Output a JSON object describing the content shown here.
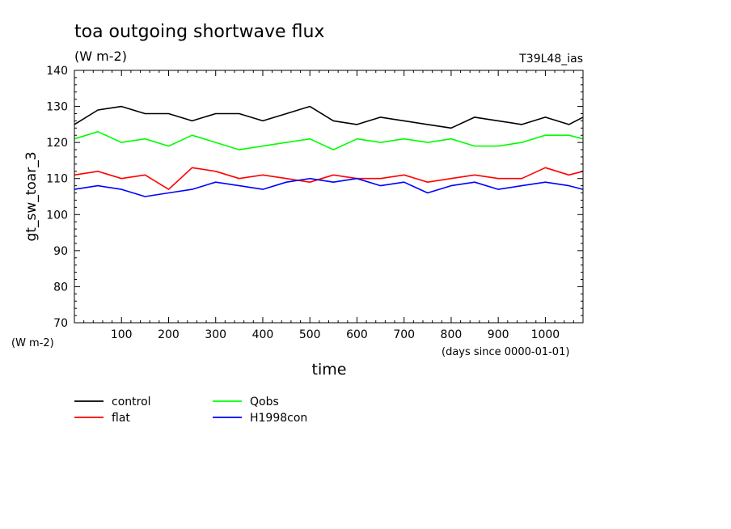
{
  "title": "toa outgoing shortwave flux",
  "units": "(W m-2)",
  "run_label": "T39L48_ias",
  "y_unit_label": "(W m-2)",
  "x_unit_note": "(days since 0000-01-01)",
  "chart_data": {
    "type": "line",
    "title": "toa outgoing shortwave flux",
    "xlabel": "time",
    "ylabel": "gt_sw_toar_3",
    "xlim": [
      0,
      1080
    ],
    "ylim": [
      70,
      140
    ],
    "x_ticks": [
      100,
      200,
      300,
      400,
      500,
      600,
      700,
      800,
      900,
      1000
    ],
    "y_ticks": [
      70,
      80,
      90,
      100,
      110,
      120,
      130,
      140
    ],
    "grid": false,
    "legend_position": "bottom-left",
    "series": [
      {
        "name": "control",
        "color": "#000000",
        "x": [
          0,
          50,
          100,
          150,
          200,
          250,
          300,
          350,
          400,
          450,
          500,
          550,
          600,
          650,
          700,
          750,
          800,
          850,
          900,
          950,
          1000,
          1050,
          1080
        ],
        "y": [
          125,
          129,
          130,
          128,
          128,
          126,
          128,
          128,
          126,
          128,
          130,
          126,
          125,
          127,
          126,
          125,
          124,
          127,
          126,
          125,
          127,
          125,
          127
        ]
      },
      {
        "name": "flat",
        "color": "#ff0000",
        "x": [
          0,
          50,
          100,
          150,
          200,
          250,
          300,
          350,
          400,
          450,
          500,
          550,
          600,
          650,
          700,
          750,
          800,
          850,
          900,
          950,
          1000,
          1050,
          1080
        ],
        "y": [
          111,
          112,
          110,
          111,
          107,
          113,
          112,
          110,
          111,
          110,
          109,
          111,
          110,
          110,
          111,
          109,
          110,
          111,
          110,
          110,
          113,
          111,
          112
        ]
      },
      {
        "name": "Qobs",
        "color": "#00ff00",
        "x": [
          0,
          50,
          100,
          150,
          200,
          250,
          300,
          350,
          400,
          450,
          500,
          550,
          600,
          650,
          700,
          750,
          800,
          850,
          900,
          950,
          1000,
          1050,
          1080
        ],
        "y": [
          121,
          123,
          120,
          121,
          119,
          122,
          120,
          118,
          119,
          120,
          121,
          118,
          121,
          120,
          121,
          120,
          121,
          119,
          119,
          120,
          122,
          122,
          121
        ]
      },
      {
        "name": "H1998con",
        "color": "#0000ff",
        "x": [
          0,
          50,
          100,
          150,
          200,
          250,
          300,
          350,
          400,
          450,
          500,
          550,
          600,
          650,
          700,
          750,
          800,
          850,
          900,
          950,
          1000,
          1050,
          1080
        ],
        "y": [
          107,
          108,
          107,
          105,
          106,
          107,
          109,
          108,
          107,
          109,
          110,
          109,
          110,
          108,
          109,
          106,
          108,
          109,
          107,
          108,
          109,
          108,
          107
        ]
      }
    ]
  }
}
